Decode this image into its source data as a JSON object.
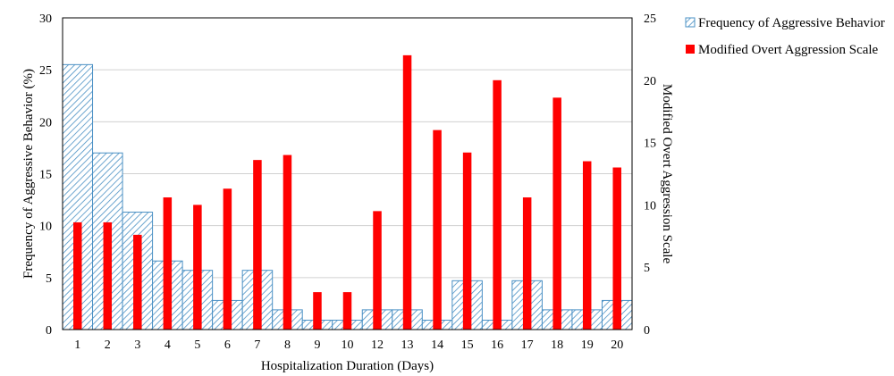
{
  "chart_data": {
    "type": "bar",
    "xlabel": "Hospitalization Duration (Days)",
    "ylabel_left": "Frequency of Aggressive Behavior (%)",
    "ylabel_right": "Modified Overt Aggression Scale",
    "ylim_left": [
      0,
      30
    ],
    "ylim_right": [
      0,
      25
    ],
    "yticks_left": [
      0,
      5,
      10,
      15,
      20,
      25,
      30
    ],
    "yticks_right": [
      0,
      5,
      10,
      15,
      20,
      25
    ],
    "categories": [
      "1",
      "2",
      "3",
      "4",
      "5",
      "6",
      "7",
      "8",
      "9",
      "10",
      "12",
      "13",
      "14",
      "15",
      "16",
      "17",
      "18",
      "19",
      "20"
    ],
    "grid": true,
    "legend_position": "top-right",
    "series": [
      {
        "name": "Frequency of Aggressive Behavior",
        "axis": "left",
        "style": "hatched",
        "color": "#4a90c4",
        "values": [
          25.5,
          17.0,
          11.3,
          6.6,
          5.7,
          2.8,
          5.7,
          1.9,
          0.9,
          0.9,
          1.9,
          1.9,
          0.9,
          4.7,
          0.9,
          4.7,
          1.9,
          1.9,
          2.8
        ]
      },
      {
        "name": "Modified Overt Aggression Scale",
        "axis": "right",
        "style": "solid",
        "color": "#ff0000",
        "values": [
          8.6,
          8.6,
          7.6,
          10.6,
          10.0,
          11.3,
          13.6,
          14.0,
          3.0,
          3.0,
          9.5,
          22.0,
          16.0,
          14.2,
          20.0,
          10.6,
          18.6,
          13.5,
          13.0
        ]
      }
    ]
  }
}
